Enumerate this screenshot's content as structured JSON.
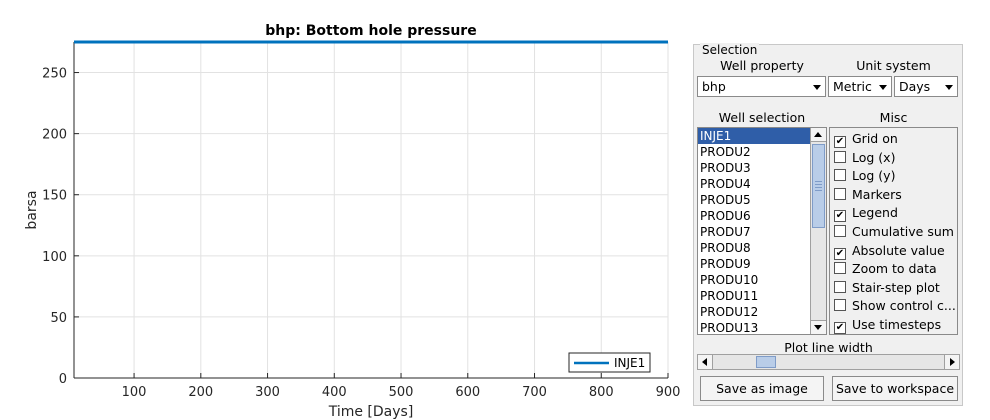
{
  "chart_data": {
    "type": "line",
    "title": "bhp: Bottom hole pressure",
    "xlabel": "Time [Days]",
    "ylabel": "barsa",
    "xlim": [
      10,
      900
    ],
    "ylim": [
      0,
      275
    ],
    "xticks": [
      100,
      200,
      300,
      400,
      500,
      600,
      700,
      800,
      900
    ],
    "yticks": [
      0,
      50,
      100,
      150,
      200,
      250
    ],
    "grid": true,
    "legend": "bottom-right",
    "series": [
      {
        "name": "INJE1",
        "color": "#0072bd",
        "x": [
          10,
          900
        ],
        "y": [
          275,
          275
        ]
      }
    ]
  },
  "selection": {
    "group_label": "Selection",
    "well_property_label": "Well property",
    "well_property_value": "bhp",
    "unit_system_label": "Unit system",
    "unit_value": "Metric",
    "time_unit_value": "Days",
    "well_selection_label": "Well selection",
    "misc_label": "Misc",
    "wells": [
      "INJE1",
      "PRODU2",
      "PRODU3",
      "PRODU4",
      "PRODU5",
      "PRODU6",
      "PRODU7",
      "PRODU8",
      "PRODU9",
      "PRODU10",
      "PRODU11",
      "PRODU12",
      "PRODU13"
    ],
    "selected_well": "INJE1",
    "misc_options": [
      {
        "label": "Grid on",
        "checked": true
      },
      {
        "label": "Log (x)",
        "checked": false
      },
      {
        "label": "Log (y)",
        "checked": false
      },
      {
        "label": "Markers",
        "checked": false
      },
      {
        "label": "Legend",
        "checked": true
      },
      {
        "label": "Cumulative sum",
        "checked": false
      },
      {
        "label": "Absolute value",
        "checked": true
      },
      {
        "label": "Zoom to data",
        "checked": false
      },
      {
        "label": "Stair-step plot",
        "checked": false
      },
      {
        "label": "Show control c...",
        "checked": false
      },
      {
        "label": "Use timesteps",
        "checked": true
      }
    ],
    "line_width_label": "Plot line width",
    "save_image_label": "Save as image",
    "save_workspace_label": "Save to workspace"
  },
  "icons": {
    "check": "✔"
  },
  "colors": {
    "accent": "#0072bd",
    "selection": "#2f5ea8"
  }
}
